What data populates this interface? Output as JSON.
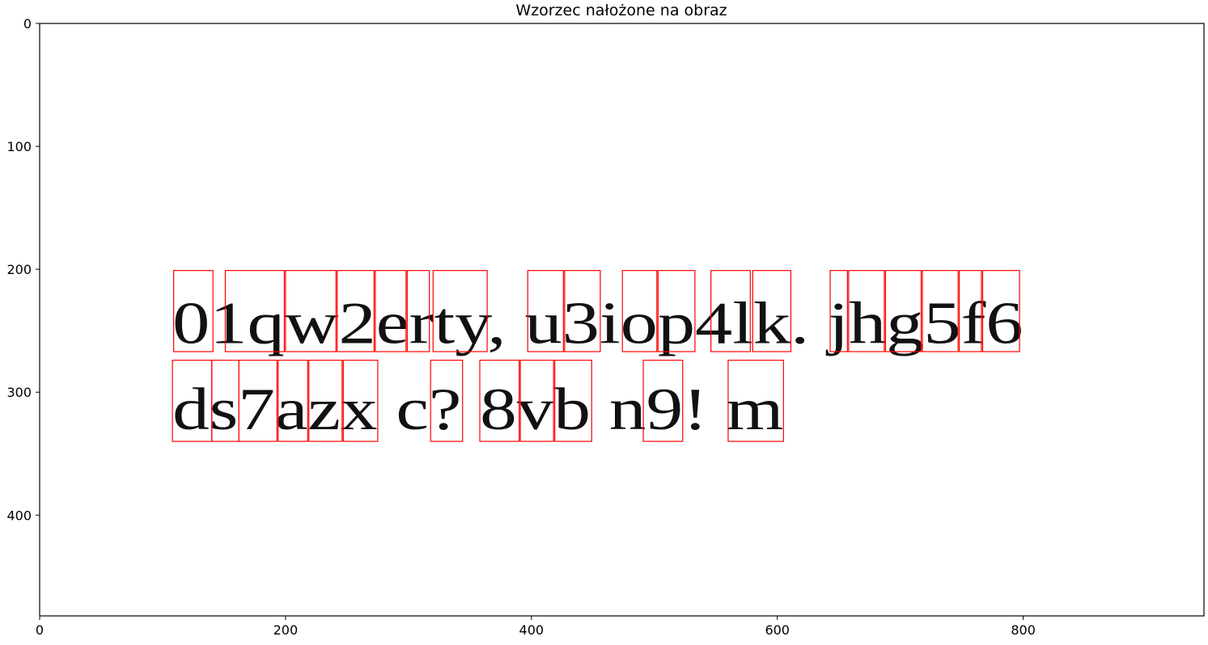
{
  "chart_data": {
    "type": "image_with_boxes",
    "title": "Wzorzec nałożone na obraz",
    "xlabel": "",
    "ylabel": "",
    "xlim": [
      0,
      947
    ],
    "ylim": [
      482,
      0
    ],
    "x_ticks": [
      0,
      200,
      400,
      600,
      800
    ],
    "y_ticks": [
      0,
      100,
      200,
      300,
      400
    ],
    "grid": false,
    "box_color": "#ff0000",
    "text_color": "#111111",
    "text_lines": [
      {
        "text": "01qw2erty, u3iop4lk. jhg5f6",
        "x_start": 108,
        "x_end": 800,
        "baseline": 260
      },
      {
        "text": "ds7azx c? 8vb n9! m",
        "x_start": 108,
        "x_end": 605,
        "baseline": 330
      }
    ],
    "boxes": [
      {
        "label": "0",
        "x0": 109,
        "y0": 201,
        "x1": 141,
        "y1": 267
      },
      {
        "label": "1",
        "x0": 151,
        "y0": 201,
        "x1": 199,
        "y1": 267
      },
      {
        "label": "q",
        "x0": 200,
        "y0": 201,
        "x1": 241,
        "y1": 267
      },
      {
        "label": "w",
        "x0": 242,
        "y0": 201,
        "x1": 272,
        "y1": 267
      },
      {
        "label": "2",
        "x0": 273,
        "y0": 201,
        "x1": 298,
        "y1": 267
      },
      {
        "label": "e",
        "x0": 299,
        "y0": 201,
        "x1": 317,
        "y1": 267
      },
      {
        "label": "r",
        "x0": 320,
        "y0": 201,
        "x1": 364,
        "y1": 267
      },
      {
        "label": "t",
        "x0": 397,
        "y0": 201,
        "x1": 426,
        "y1": 267
      },
      {
        "label": "y",
        "x0": 427,
        "y0": 201,
        "x1": 456,
        "y1": 267
      },
      {
        "label": "u",
        "x0": 474,
        "y0": 201,
        "x1": 502,
        "y1": 267
      },
      {
        "label": "3",
        "x0": 503,
        "y0": 201,
        "x1": 533,
        "y1": 267
      },
      {
        "label": "i",
        "x0": 546,
        "y0": 201,
        "x1": 578,
        "y1": 267
      },
      {
        "label": "o",
        "x0": 580,
        "y0": 201,
        "x1": 611,
        "y1": 267
      },
      {
        "label": "p",
        "x0": 643,
        "y0": 201,
        "x1": 657,
        "y1": 267
      },
      {
        "label": "4",
        "x0": 658,
        "y0": 201,
        "x1": 687,
        "y1": 267
      },
      {
        "label": "l",
        "x0": 688,
        "y0": 201,
        "x1": 717,
        "y1": 267
      },
      {
        "label": "k",
        "x0": 718,
        "y0": 201,
        "x1": 747,
        "y1": 267
      },
      {
        "label": "j",
        "x0": 748,
        "y0": 201,
        "x1": 766,
        "y1": 267
      },
      {
        "label": "h",
        "x0": 767,
        "y0": 201,
        "x1": 797,
        "y1": 267
      },
      {
        "label": "d",
        "x0": 108,
        "y0": 274,
        "x1": 140,
        "y1": 340
      },
      {
        "label": "s",
        "x0": 140,
        "y0": 274,
        "x1": 162,
        "y1": 340
      },
      {
        "label": "7",
        "x0": 162,
        "y0": 274,
        "x1": 193,
        "y1": 340
      },
      {
        "label": "a",
        "x0": 194,
        "y0": 274,
        "x1": 218,
        "y1": 340
      },
      {
        "label": "z",
        "x0": 219,
        "y0": 274,
        "x1": 246,
        "y1": 340
      },
      {
        "label": "x",
        "x0": 247,
        "y0": 274,
        "x1": 275,
        "y1": 340
      },
      {
        "label": "c",
        "x0": 318,
        "y0": 274,
        "x1": 344,
        "y1": 340
      },
      {
        "label": "?",
        "x0": 358,
        "y0": 274,
        "x1": 390,
        "y1": 340
      },
      {
        "label": "8",
        "x0": 391,
        "y0": 274,
        "x1": 418,
        "y1": 340
      },
      {
        "label": "v",
        "x0": 419,
        "y0": 274,
        "x1": 449,
        "y1": 340
      },
      {
        "label": "b",
        "x0": 491,
        "y0": 274,
        "x1": 523,
        "y1": 340
      },
      {
        "label": "n",
        "x0": 560,
        "y0": 274,
        "x1": 605,
        "y1": 340
      }
    ]
  }
}
